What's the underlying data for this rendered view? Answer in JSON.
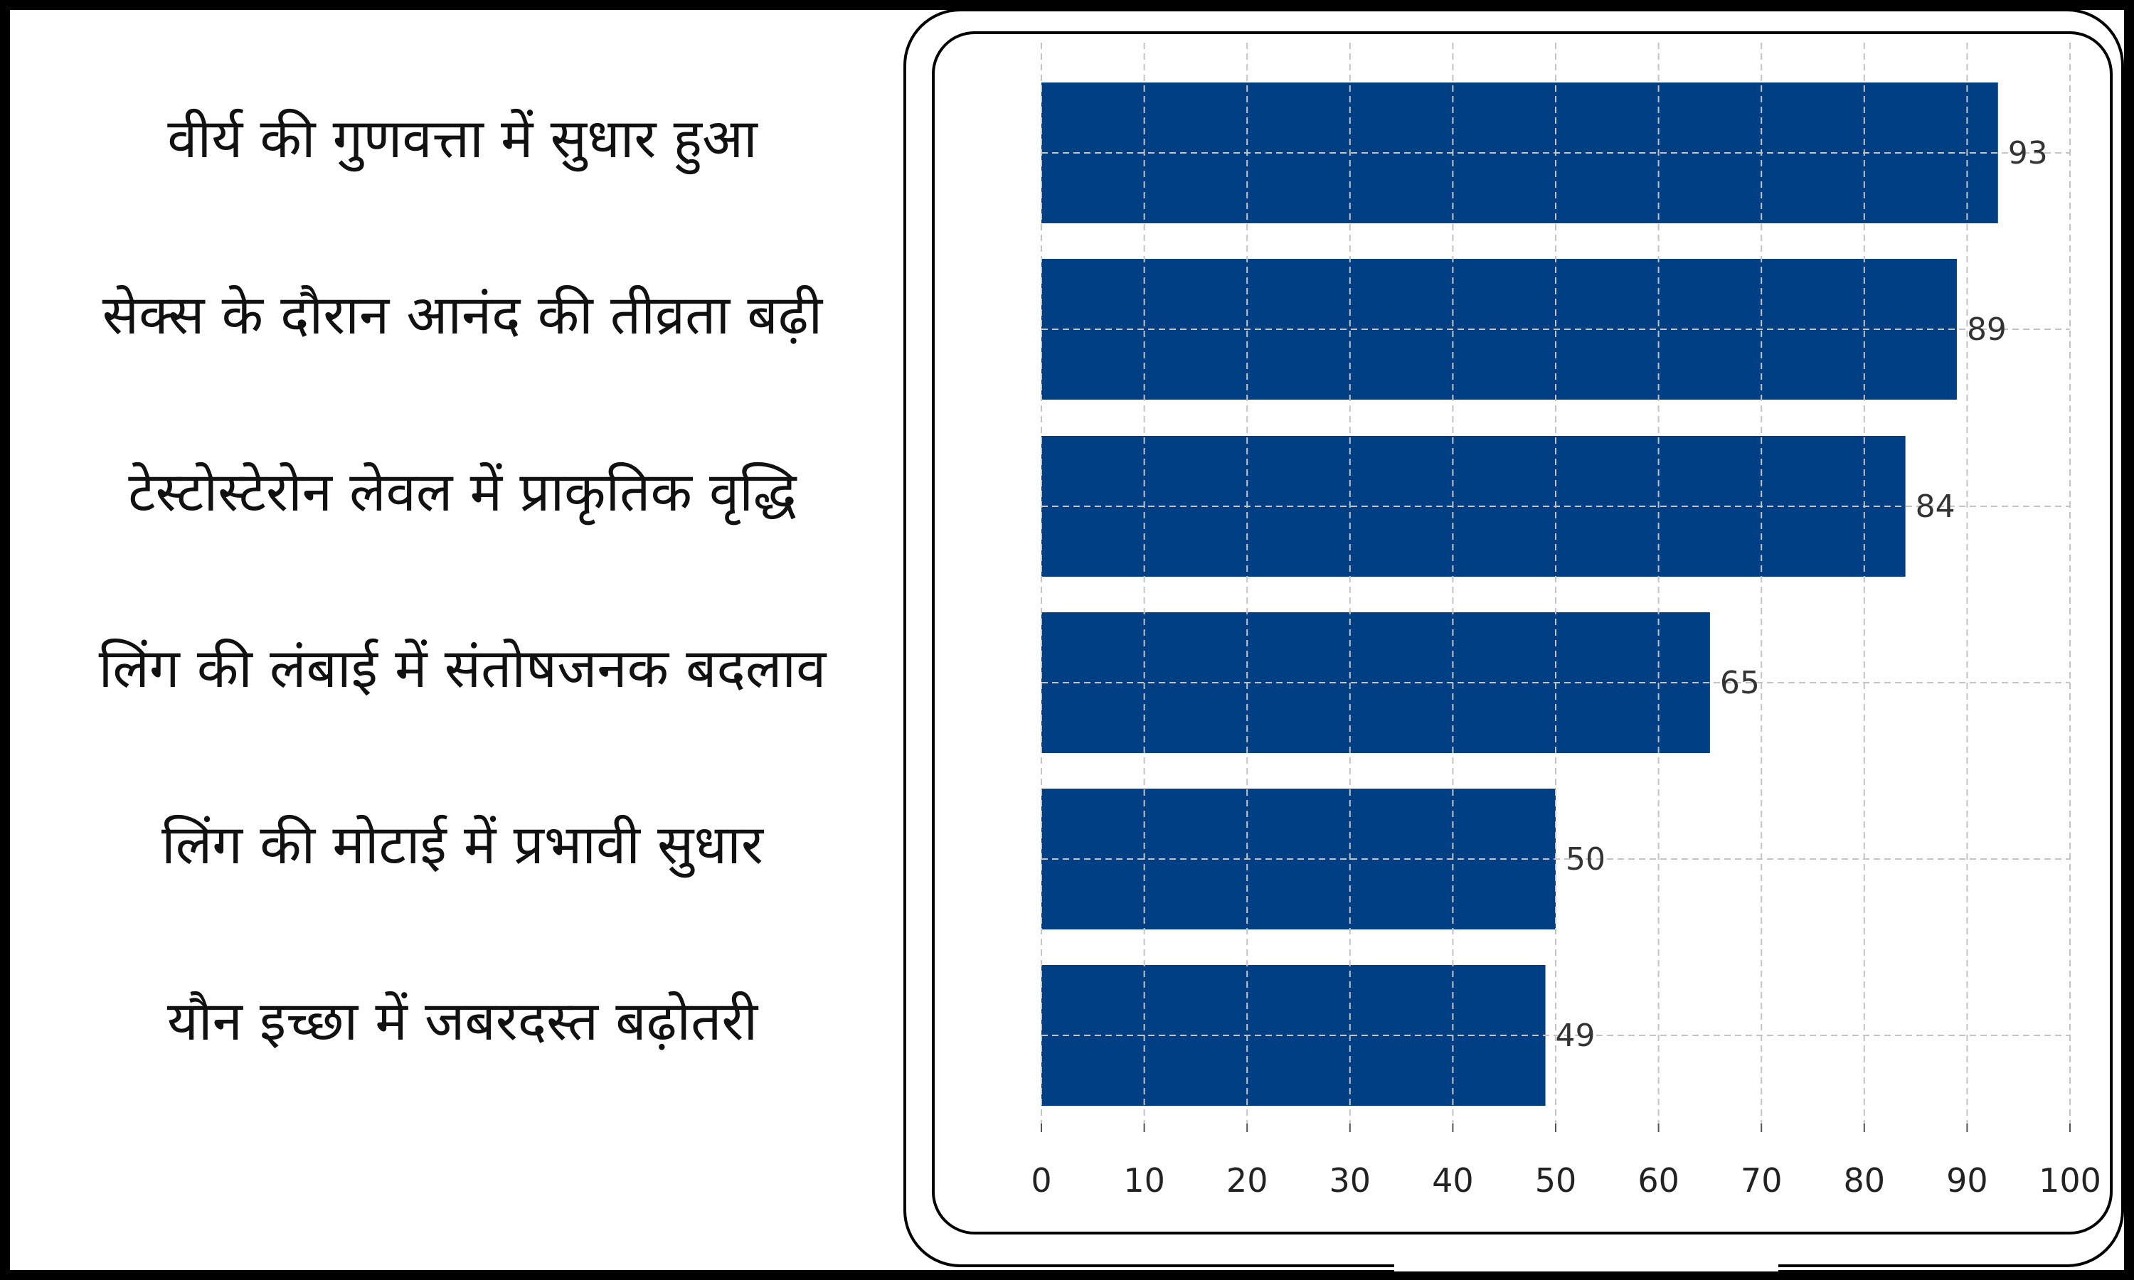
{
  "chart_data": {
    "type": "bar",
    "orientation": "horizontal",
    "title": "",
    "xlabel": "",
    "ylabel": "",
    "categories": [
      "वीर्य की गुणवत्ता में सुधार हुआ",
      "सेक्स के दौरान आनंद की तीव्रता बढ़ी",
      "टेस्टोस्टेरोन लेवल में प्राकृतिक वृद्धि",
      "लिंग की लंबाई में संतोषजनक बदलाव",
      "लिंग की मोटाई में प्रभावी सुधार",
      "यौन इच्छा में जबरदस्त बढ़ोतरी"
    ],
    "values": [
      93,
      89,
      84,
      65,
      50,
      49
    ],
    "data_labels": [
      "93",
      "89",
      "84",
      "65",
      "50",
      "49"
    ],
    "xlim": [
      0,
      100
    ],
    "xticks": [
      0,
      10,
      20,
      30,
      40,
      50,
      60,
      70,
      80,
      90,
      100
    ],
    "xtick_labels": [
      "0",
      "10",
      "20",
      "30",
      "40",
      "50",
      "60",
      "70",
      "80",
      "90",
      "100"
    ],
    "grid": true,
    "legend": "none",
    "bar_color": "#003f84",
    "grid_color": "#c4c4c4"
  }
}
